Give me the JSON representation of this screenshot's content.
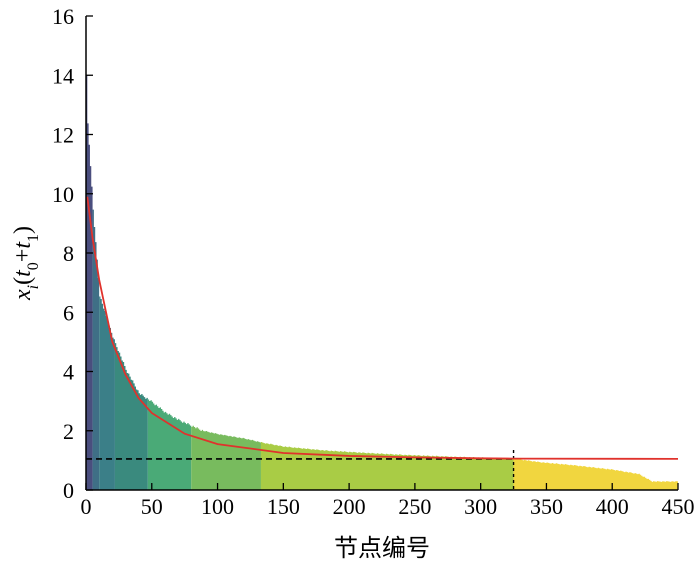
{
  "chart_data": {
    "type": "bar",
    "title": "",
    "xlabel": "节点编号",
    "ylabel": "x_i(t_0+t_1)",
    "xlim": [
      0,
      450
    ],
    "ylim": [
      0,
      16
    ],
    "xticks": [
      0,
      50,
      100,
      150,
      200,
      250,
      300,
      350,
      400,
      450
    ],
    "yticks": [
      0,
      2,
      4,
      6,
      8,
      10,
      12,
      14,
      16
    ],
    "bars_note": "Sorted node values (descending), grouped into colored segments",
    "profile_points": [
      [
        0,
        14.0
      ],
      [
        1,
        12.4
      ],
      [
        3,
        11.0
      ],
      [
        5,
        9.5
      ],
      [
        8,
        7.8
      ],
      [
        10,
        6.6
      ],
      [
        15,
        5.9
      ],
      [
        20,
        5.2
      ],
      [
        30,
        4.1
      ],
      [
        40,
        3.3
      ],
      [
        50,
        3.0
      ],
      [
        60,
        2.65
      ],
      [
        70,
        2.4
      ],
      [
        80,
        2.2
      ],
      [
        90,
        2.0
      ],
      [
        100,
        1.9
      ],
      [
        120,
        1.75
      ],
      [
        135,
        1.6
      ],
      [
        150,
        1.48
      ],
      [
        180,
        1.35
      ],
      [
        210,
        1.27
      ],
      [
        240,
        1.2
      ],
      [
        280,
        1.13
      ],
      [
        320,
        1.08
      ],
      [
        325,
        1.07
      ],
      [
        345,
        0.95
      ],
      [
        370,
        0.85
      ],
      [
        400,
        0.7
      ],
      [
        420,
        0.55
      ],
      [
        430,
        0.3
      ],
      [
        448,
        0.3
      ]
    ],
    "segments": [
      {
        "from": 0,
        "to": 5,
        "color": "#4a4e7e"
      },
      {
        "from": 5,
        "to": 10,
        "color": "#3f6f86"
      },
      {
        "from": 10,
        "to": 22,
        "color": "#3b7f88"
      },
      {
        "from": 22,
        "to": 47,
        "color": "#3a8a7e"
      },
      {
        "from": 47,
        "to": 80,
        "color": "#4aaa77"
      },
      {
        "from": 80,
        "to": 133,
        "color": "#78bb5e"
      },
      {
        "from": 133,
        "to": 325,
        "color": "#a9cc45"
      },
      {
        "from": 325,
        "to": 450,
        "color": "#f1d63f"
      }
    ],
    "fit_curve": {
      "label": "fit",
      "color": "#e0322c",
      "points": [
        [
          1,
          9.9
        ],
        [
          5,
          8.5
        ],
        [
          10,
          7.1
        ],
        [
          20,
          5.0
        ],
        [
          30,
          3.9
        ],
        [
          40,
          3.1
        ],
        [
          50,
          2.6
        ],
        [
          75,
          1.9
        ],
        [
          100,
          1.55
        ],
        [
          150,
          1.25
        ],
        [
          200,
          1.15
        ],
        [
          250,
          1.1
        ],
        [
          300,
          1.07
        ],
        [
          325,
          1.06
        ],
        [
          450,
          1.05
        ]
      ]
    },
    "dashed_threshold": {
      "y": 1.05,
      "x_end": 325
    },
    "vertical_marker": {
      "x": 325
    },
    "colors": {
      "axis": "#000000",
      "fit": "#e0322c",
      "dashed": "#000000"
    }
  }
}
